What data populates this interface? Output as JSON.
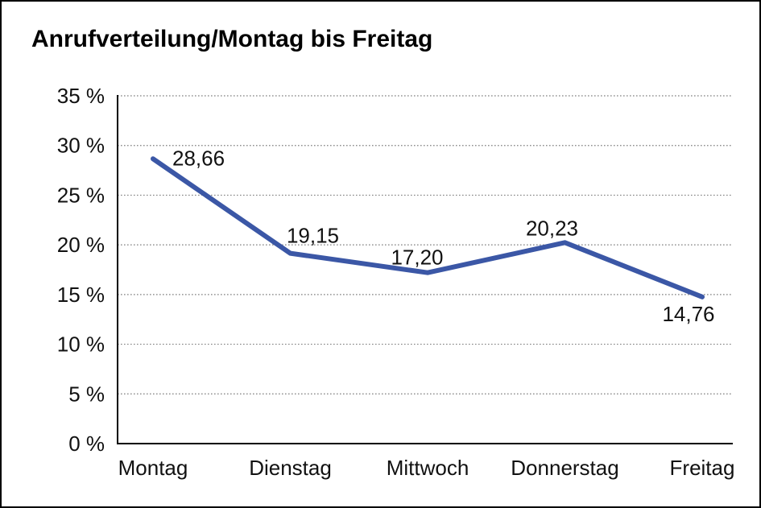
{
  "title": "Anrufverteilung/Montag bis Freitag",
  "chart_data": {
    "type": "line",
    "categories": [
      "Montag",
      "Dienstag",
      "Mittwoch",
      "Donnerstag",
      "Freitag"
    ],
    "values": [
      28.66,
      19.15,
      17.2,
      20.23,
      14.76
    ],
    "value_labels": [
      "28,66",
      "19,15",
      "17,20",
      "20,23",
      "14,76"
    ],
    "title": "Anrufverteilung/Montag bis Freitag",
    "xlabel": "",
    "ylabel": "",
    "ylim": [
      0,
      35
    ],
    "ytick_step": 5,
    "ytick_suffix": " %",
    "grid": "horizontal-dotted",
    "legend": "none",
    "line_color": "#3B57A6",
    "axis_color": "#000000",
    "grid_color": "#7f7f7f"
  }
}
